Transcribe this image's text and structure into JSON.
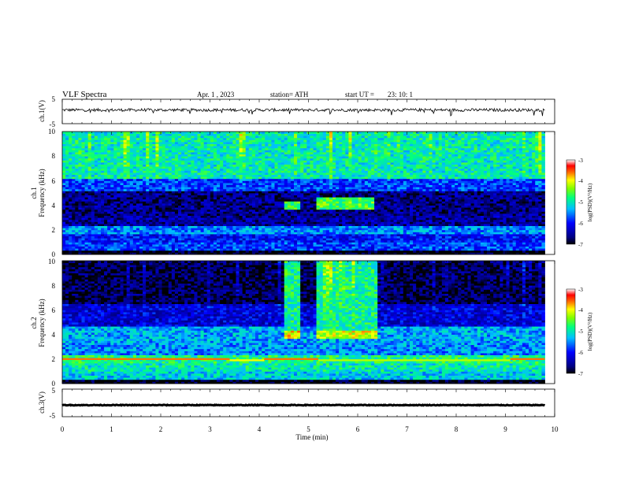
{
  "header": {
    "title": "VLF  Spectra",
    "date": "Apr. 1  , 2023",
    "station": "station= ATH",
    "start_label": "start  UT  =",
    "start_time": "23: 10: 1"
  },
  "chart_data": [
    {
      "type": "line",
      "name": "ch1-waveform",
      "ylabel": "ch.1(V)",
      "y_ticks": [
        "5",
        "-5"
      ],
      "ylim": [
        -5,
        5
      ],
      "xlim": [
        0,
        10
      ],
      "data_extent_min": 9.8,
      "baseline_value": 0.6,
      "noise_amplitude": 1.2
    },
    {
      "type": "heatmap",
      "name": "ch1-spectrogram",
      "ylabel_prefix": "ch.1",
      "ylabel": "Frequency  (kHz)",
      "y_ticks": [
        "0",
        "2",
        "4",
        "6",
        "8",
        "10"
      ],
      "ylim": [
        0,
        10
      ],
      "xlim": [
        0,
        10
      ],
      "data_extent_min": 9.8,
      "colorbar": {
        "label": "log(PSD)(V²/Hz)",
        "ticks": [
          "-3",
          "-4",
          "-5",
          "-6",
          "-7"
        ],
        "range": [
          -7,
          -3
        ]
      },
      "bands_khz": [
        {
          "f0": 0.0,
          "f1": 0.3,
          "level": -7.0
        },
        {
          "f0": 0.3,
          "f1": 1.0,
          "level": -5.8
        },
        {
          "f0": 1.0,
          "f1": 1.6,
          "level": -6.0
        },
        {
          "f0": 1.6,
          "f1": 2.3,
          "level": -5.5
        },
        {
          "f0": 2.3,
          "f1": 3.2,
          "level": -6.5
        },
        {
          "f0": 3.2,
          "f1": 5.1,
          "level": -6.6
        },
        {
          "f0": 5.1,
          "f1": 6.2,
          "level": -5.8
        },
        {
          "f0": 6.2,
          "f1": 10.0,
          "level": -5.0
        }
      ],
      "events": [
        {
          "t0": 4.5,
          "t1": 4.8,
          "f0": 3.6,
          "f1": 4.3,
          "level": -4.6
        },
        {
          "t0": 5.1,
          "t1": 6.3,
          "f0": 3.6,
          "f1": 4.6,
          "level": -4.6
        }
      ]
    },
    {
      "type": "heatmap",
      "name": "ch2-spectrogram",
      "ylabel_prefix": "ch.2",
      "ylabel": "Frequency  (kHz)",
      "y_ticks": [
        "0",
        "2",
        "4",
        "6",
        "8",
        "10"
      ],
      "ylim": [
        0,
        10
      ],
      "xlim": [
        0,
        10
      ],
      "data_extent_min": 9.8,
      "colorbar": {
        "label": "log(PSD)(V²/Hz)",
        "ticks": [
          "-3",
          "-4",
          "-5",
          "-6",
          "-7"
        ],
        "range": [
          -7,
          -3
        ]
      },
      "bands_khz": [
        {
          "f0": 0.0,
          "f1": 0.3,
          "level": -7.0
        },
        {
          "f0": 0.3,
          "f1": 1.0,
          "level": -5.2
        },
        {
          "f0": 1.0,
          "f1": 1.6,
          "level": -5.0
        },
        {
          "f0": 1.6,
          "f1": 2.3,
          "level": -4.8
        },
        {
          "f0": 2.3,
          "f1": 3.3,
          "level": -5.5
        },
        {
          "f0": 3.3,
          "f1": 4.6,
          "level": -5.4
        },
        {
          "f0": 4.6,
          "f1": 6.5,
          "level": -6.2
        },
        {
          "f0": 6.5,
          "f1": 10.0,
          "level": -6.8
        }
      ],
      "lines_khz": [
        {
          "f": 2.0,
          "level": -3.6,
          "t0": 0.0,
          "t1": 3.4
        },
        {
          "f": 1.9,
          "level": -4.0,
          "t0": 3.4,
          "t1": 4.1
        },
        {
          "f": 2.0,
          "level": -3.6,
          "t0": 4.1,
          "t1": 5.2
        },
        {
          "f": 1.9,
          "level": -4.2,
          "t0": 5.2,
          "t1": 9.1
        },
        {
          "f": 2.0,
          "level": -3.6,
          "t0": 9.1,
          "t1": 9.8
        }
      ],
      "events": [
        {
          "t0": 4.5,
          "t1": 4.8,
          "f0": 3.7,
          "f1": 10.0,
          "level": -4.9
        },
        {
          "t0": 5.1,
          "t1": 6.4,
          "f0": 3.7,
          "f1": 10.0,
          "level": -4.9
        },
        {
          "t0": 4.5,
          "t1": 4.8,
          "f0": 3.7,
          "f1": 4.3,
          "level": -4.0
        },
        {
          "t0": 5.1,
          "t1": 6.4,
          "f0": 3.7,
          "f1": 4.3,
          "level": -4.1
        }
      ]
    },
    {
      "type": "line",
      "name": "ch3-waveform",
      "ylabel": "ch.3(V)",
      "y_ticks": [
        "5",
        "-5"
      ],
      "ylim": [
        -5,
        5
      ],
      "xlim": [
        0,
        10
      ],
      "data_extent_min": 9.8,
      "baseline_value": -0.8,
      "noise_amplitude": 0.25
    }
  ],
  "xaxis": {
    "label": "Time  (min)",
    "ticks": [
      "0",
      "1",
      "2",
      "3",
      "4",
      "5",
      "6",
      "7",
      "8",
      "9",
      "10"
    ]
  }
}
